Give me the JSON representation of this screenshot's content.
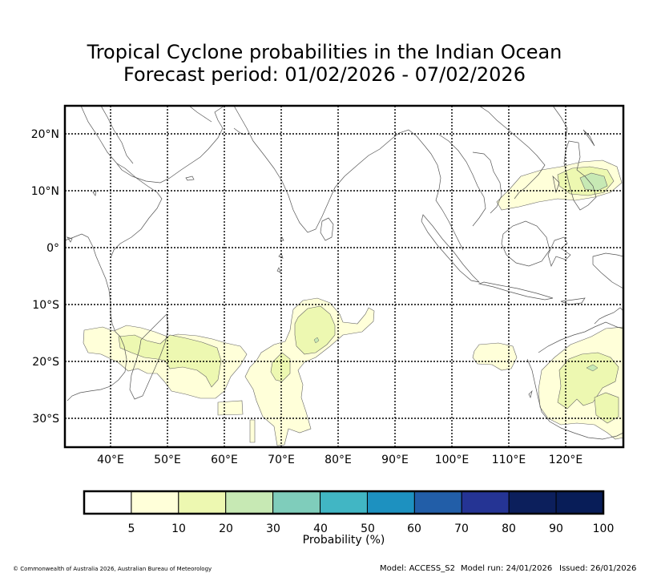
{
  "title": {
    "line1": "Tropical Cyclone probabilities in the Indian Ocean",
    "line2": "Forecast period: 01/02/2026 - 07/02/2026"
  },
  "map": {
    "lon_labels": [
      "40°E",
      "50°E",
      "60°E",
      "70°E",
      "80°E",
      "90°E",
      "100°E",
      "110°E",
      "120°E"
    ],
    "lat_labels": [
      "20°N",
      "10°N",
      "0°",
      "10°S",
      "20°S",
      "30°S"
    ],
    "lon_range": [
      32,
      130
    ],
    "lat_range": [
      -35,
      25
    ]
  },
  "colorbar": {
    "label": "Probability (%)",
    "ticks": [
      "5",
      "10",
      "20",
      "30",
      "40",
      "50",
      "60",
      "70",
      "80",
      "90",
      "100"
    ],
    "colors": [
      "#ffffff",
      "#ffffd9",
      "#edf8b1",
      "#c7e9b4",
      "#7fcdbb",
      "#41b6c4",
      "#1d91c0",
      "#225ea8",
      "#253494",
      "#0c1f5c",
      "#081d58"
    ]
  },
  "footer": {
    "copyright": "© Commonwealth of Australia 2026, Australian Bureau of Meteorology",
    "model": "Model: ACCESS_S2",
    "model_run": "Model run: 24/01/2026",
    "issued": "Issued: 26/01/2026"
  }
}
